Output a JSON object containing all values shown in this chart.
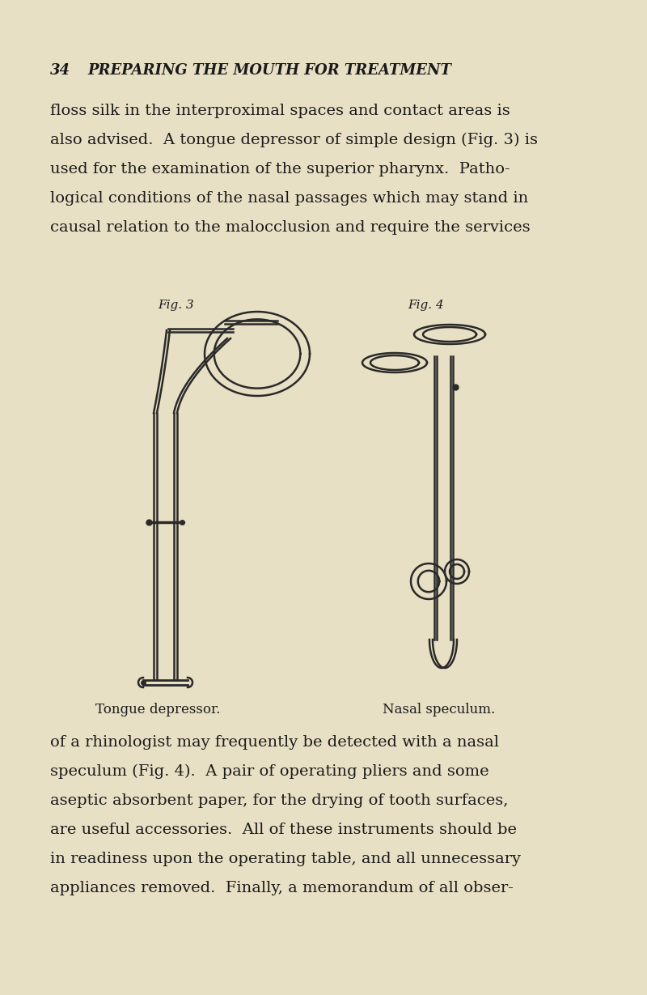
{
  "bg_color": "#e8e0c4",
  "text_color": "#1a1a1a",
  "line_color": "#2a2a2a",
  "page_number": "34",
  "chapter_title": "PREPARING THE MOUTH FOR TREATMENT",
  "paragraph1_lines": [
    "floss silk in the interproximal spaces and contact areas is",
    "also advised.  A tongue depressor of simple design (Fig. 3) is",
    "used for the examination of the superior pharynx.  Patho-",
    "logical conditions of the nasal passages which may stand in",
    "causal relation to the malocclusion and require the services"
  ],
  "fig3_label": "Fig. 3",
  "fig4_label": "Fig. 4",
  "caption3": "Tongue depressor.",
  "caption4": "Nasal speculum.",
  "paragraph2_lines": [
    "of a rhinologist may frequently be detected with a nasal",
    "speculum (Fig. 4).  A pair of operating pliers and some",
    "aseptic absorbent paper, for the drying of tooth surfaces,",
    "are useful accessories.  All of these instruments should be",
    "in readiness upon the operating table, and all unnecessary",
    "appliances removed.  Finally, a memorandum of all obser-"
  ]
}
